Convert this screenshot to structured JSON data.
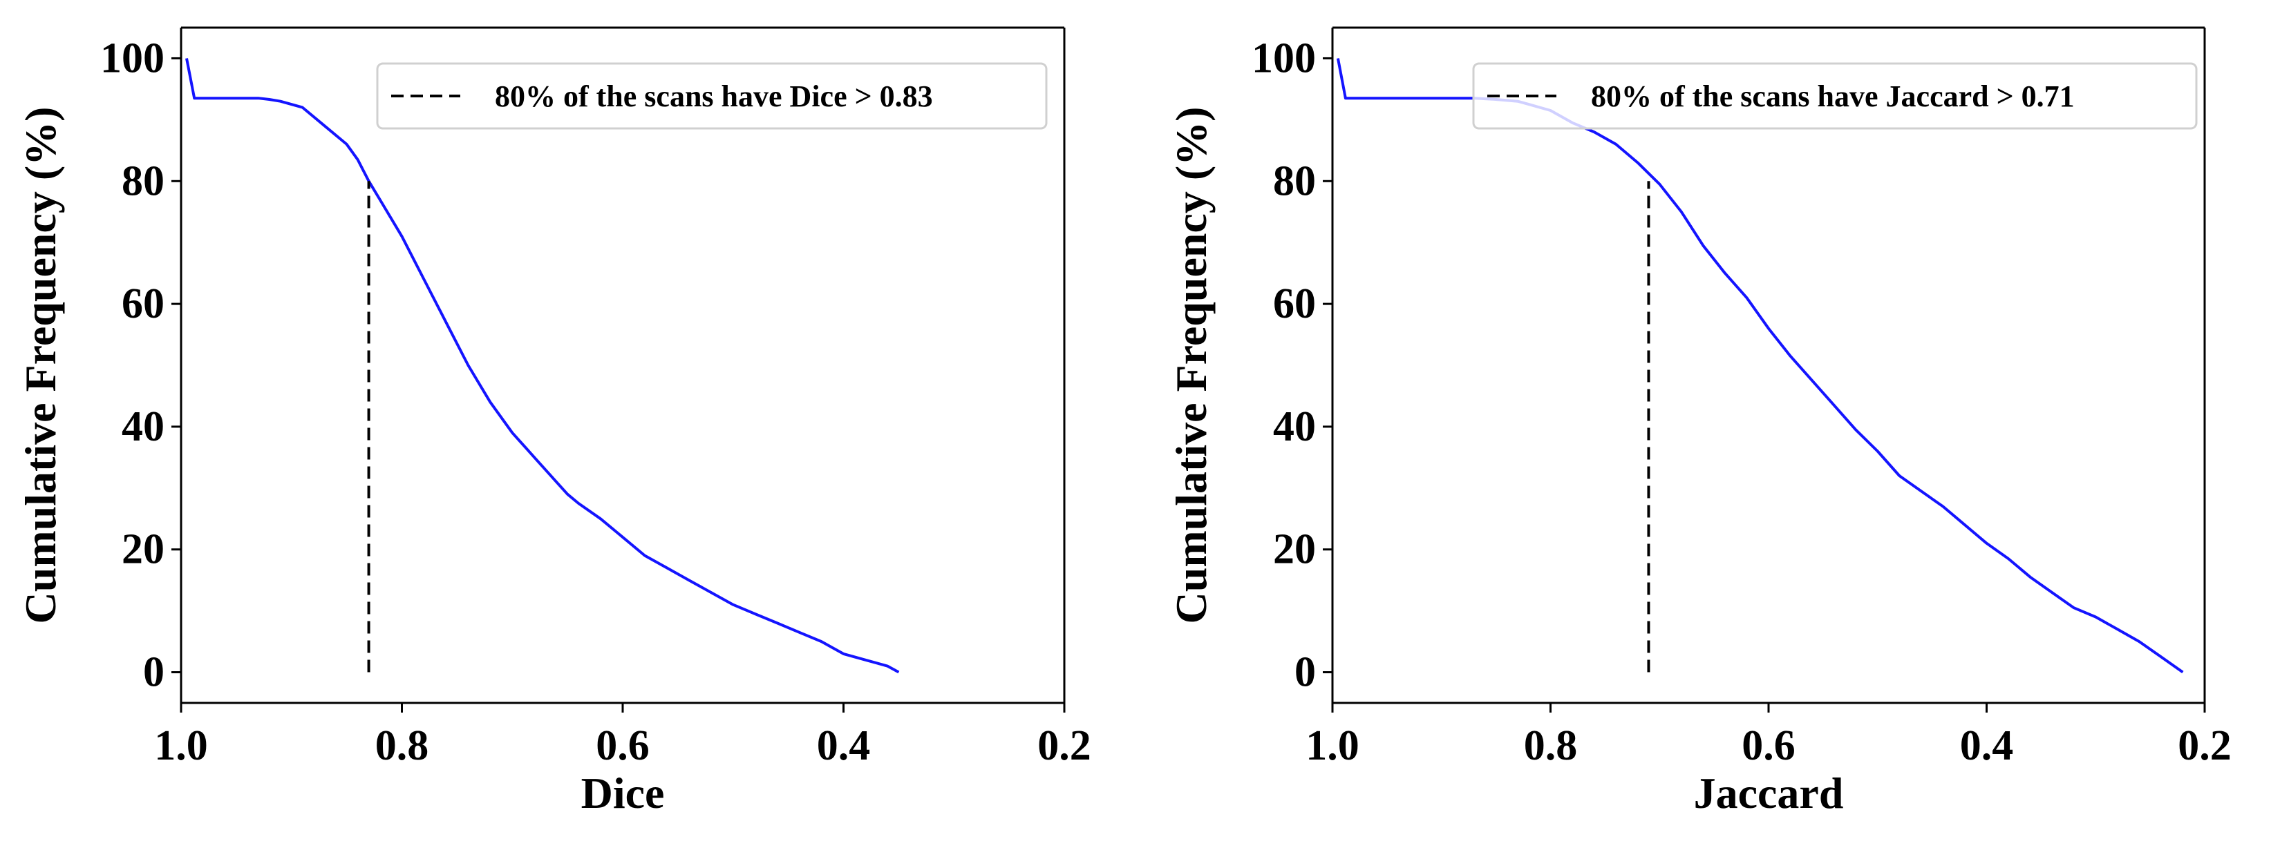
{
  "chart_data": [
    {
      "type": "line",
      "xlabel": "Dice",
      "ylabel": "Cumulative Frequency (%)",
      "xlim": [
        1.0,
        0.2
      ],
      "ylim": [
        -5,
        105
      ],
      "x_ticks": [
        1.0,
        0.8,
        0.6,
        0.4,
        0.2
      ],
      "x_tick_labels": [
        "1.0",
        "0.8",
        "0.6",
        "0.4",
        "0.2"
      ],
      "y_ticks": [
        0,
        20,
        40,
        60,
        80,
        100
      ],
      "y_tick_labels": [
        "0",
        "20",
        "40",
        "60",
        "80",
        "100"
      ],
      "grid": false,
      "legend_position": "top-right",
      "series": [
        {
          "name": "cumulative frequency",
          "color": "#1414ff",
          "style": "solid",
          "x": [
            0.995,
            0.988,
            0.96,
            0.93,
            0.92,
            0.91,
            0.89,
            0.87,
            0.85,
            0.84,
            0.83,
            0.82,
            0.8,
            0.78,
            0.76,
            0.74,
            0.72,
            0.7,
            0.68,
            0.66,
            0.65,
            0.64,
            0.62,
            0.6,
            0.58,
            0.56,
            0.54,
            0.52,
            0.5,
            0.48,
            0.46,
            0.44,
            0.42,
            0.41,
            0.4,
            0.38,
            0.36,
            0.35
          ],
          "y": [
            100,
            93.5,
            93.5,
            93.5,
            93.3,
            93.0,
            92.0,
            89.0,
            86.0,
            83.5,
            80.0,
            77.0,
            71.0,
            64.0,
            57.0,
            50.0,
            44.0,
            39.0,
            35.0,
            31.0,
            29.0,
            27.5,
            25.0,
            22.0,
            19.0,
            17.0,
            15.0,
            13.0,
            11.0,
            9.5,
            8.0,
            6.5,
            5.0,
            4.0,
            3.0,
            2.0,
            1.0,
            0.0
          ]
        },
        {
          "name": "80% of the scans have Dice > 0.83",
          "color": "#000000",
          "style": "dashed",
          "x": [
            0.83,
            0.83
          ],
          "y": [
            0,
            80
          ]
        }
      ],
      "legend": [
        "80% of the scans have Dice > 0.83"
      ]
    },
    {
      "type": "line",
      "xlabel": "Jaccard",
      "ylabel": "Cumulative Frequency (%)",
      "xlim": [
        1.0,
        0.2
      ],
      "ylim": [
        -5,
        105
      ],
      "x_ticks": [
        1.0,
        0.8,
        0.6,
        0.4,
        0.2
      ],
      "x_tick_labels": [
        "1.0",
        "0.8",
        "0.6",
        "0.4",
        "0.2"
      ],
      "y_ticks": [
        0,
        20,
        40,
        60,
        80,
        100
      ],
      "y_tick_labels": [
        "0",
        "20",
        "40",
        "60",
        "80",
        "100"
      ],
      "grid": false,
      "legend_position": "top-right",
      "series": [
        {
          "name": "cumulative frequency",
          "color": "#1414ff",
          "style": "solid",
          "x": [
            0.995,
            0.988,
            0.95,
            0.9,
            0.87,
            0.85,
            0.83,
            0.82,
            0.8,
            0.78,
            0.76,
            0.74,
            0.72,
            0.7,
            0.68,
            0.66,
            0.64,
            0.62,
            0.6,
            0.58,
            0.56,
            0.54,
            0.52,
            0.5,
            0.48,
            0.46,
            0.44,
            0.42,
            0.4,
            0.38,
            0.36,
            0.34,
            0.32,
            0.3,
            0.28,
            0.26,
            0.24,
            0.22
          ],
          "y": [
            100,
            93.5,
            93.5,
            93.5,
            93.5,
            93.3,
            93.0,
            92.5,
            91.5,
            89.5,
            88.0,
            86.0,
            83.0,
            79.5,
            75.0,
            69.5,
            65.0,
            61.0,
            56.0,
            51.5,
            47.5,
            43.5,
            39.5,
            36.0,
            32.0,
            29.5,
            27.0,
            24.0,
            21.0,
            18.5,
            15.5,
            13.0,
            10.5,
            9.0,
            7.0,
            5.0,
            2.5,
            0.0
          ]
        },
        {
          "name": "80% of the scans have Jaccard > 0.71",
          "color": "#000000",
          "style": "dashed",
          "x": [
            0.71,
            0.71
          ],
          "y": [
            0,
            80
          ]
        }
      ],
      "legend": [
        "80% of the scans have Jaccard > 0.71"
      ]
    }
  ]
}
